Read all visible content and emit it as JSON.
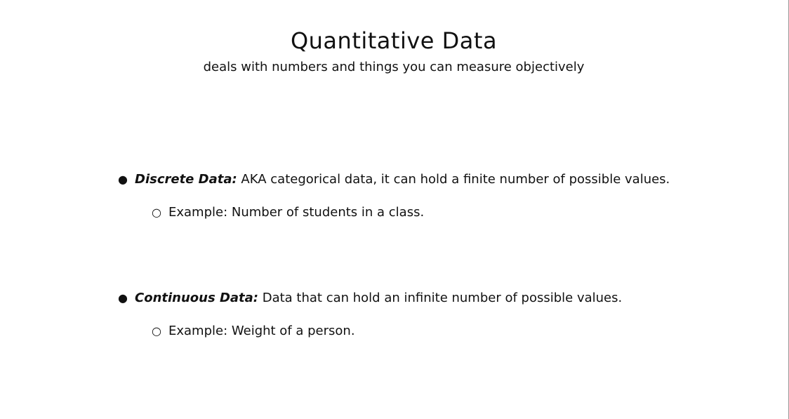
{
  "slide": {
    "title": "Quantitative Data",
    "subtitle": "deals with numbers and things you can measure objectively",
    "items": [
      {
        "bullet": "●",
        "term": "Discrete Data:",
        "description": " AKA categorical data, it can hold a finite number of possible values.",
        "sub_bullet": "○",
        "example": "Example: Number of students in a class."
      },
      {
        "bullet": "●",
        "term": "Continuous Data:",
        "description": " Data that can hold an infinite number of possible values.",
        "sub_bullet": "○",
        "example": "Example: Weight of a person."
      }
    ]
  }
}
